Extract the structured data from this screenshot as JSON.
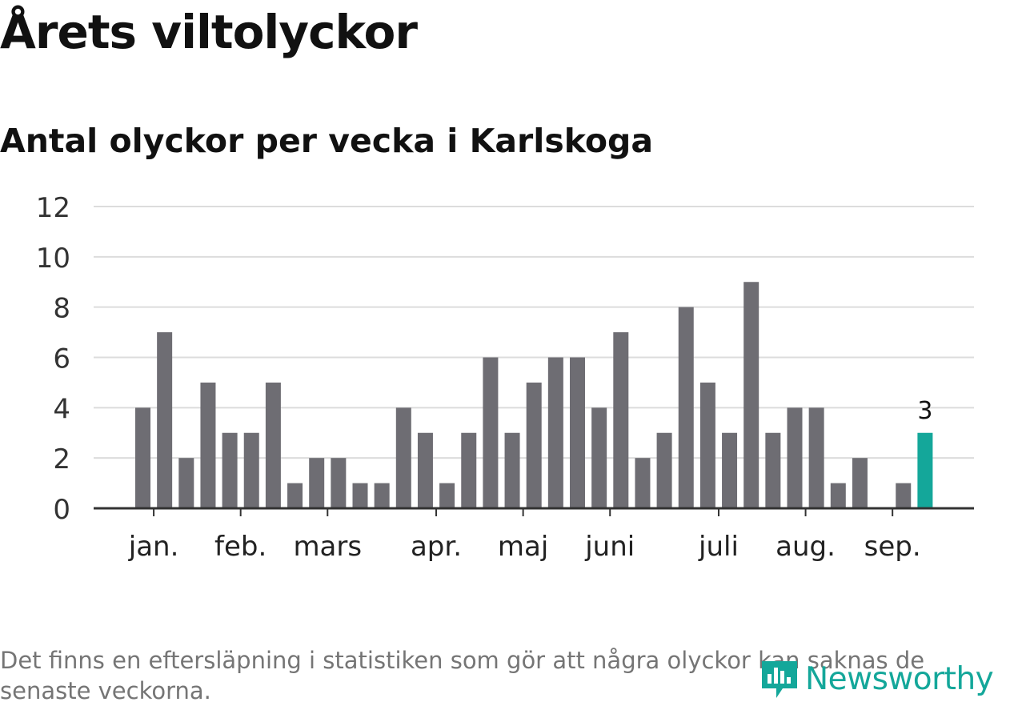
{
  "title": "Årets viltolyckor",
  "subtitle": "Antal olyckor per vecka i Karlskoga",
  "footnote": "Det finns en eftersläpning i statistiken som gör att några olyckor kan saknas de senaste veckorna.",
  "brand": {
    "name": "Newsworthy",
    "icon": "bar-chart-logo-icon",
    "color": "#14a79a"
  },
  "chart_data": {
    "type": "bar",
    "ylim": [
      0,
      12
    ],
    "y_ticks": [
      0,
      2,
      4,
      6,
      8,
      10,
      12
    ],
    "grid": true,
    "values": [
      4,
      7,
      2,
      5,
      3,
      3,
      5,
      1,
      2,
      2,
      1,
      1,
      4,
      3,
      1,
      3,
      6,
      3,
      5,
      6,
      6,
      4,
      7,
      2,
      3,
      8,
      5,
      3,
      9,
      3,
      4,
      4,
      1,
      2,
      0,
      1,
      3
    ],
    "month_labels": [
      {
        "label": "jan.",
        "at_bar": 0.5
      },
      {
        "label": "feb.",
        "at_bar": 4.5
      },
      {
        "label": "mars",
        "at_bar": 8.5
      },
      {
        "label": "apr.",
        "at_bar": 13.5
      },
      {
        "label": "maj",
        "at_bar": 17.5
      },
      {
        "label": "juni",
        "at_bar": 21.5
      },
      {
        "label": "juli",
        "at_bar": 26.5
      },
      {
        "label": "aug.",
        "at_bar": 30.5
      },
      {
        "label": "sep.",
        "at_bar": 34.5
      }
    ],
    "highlight": {
      "index": 36,
      "label": "3"
    },
    "colors": {
      "bar": "#6e6d73",
      "highlight": "#14a79a",
      "grid": "#dcdcdc",
      "axis": "#333333"
    }
  }
}
